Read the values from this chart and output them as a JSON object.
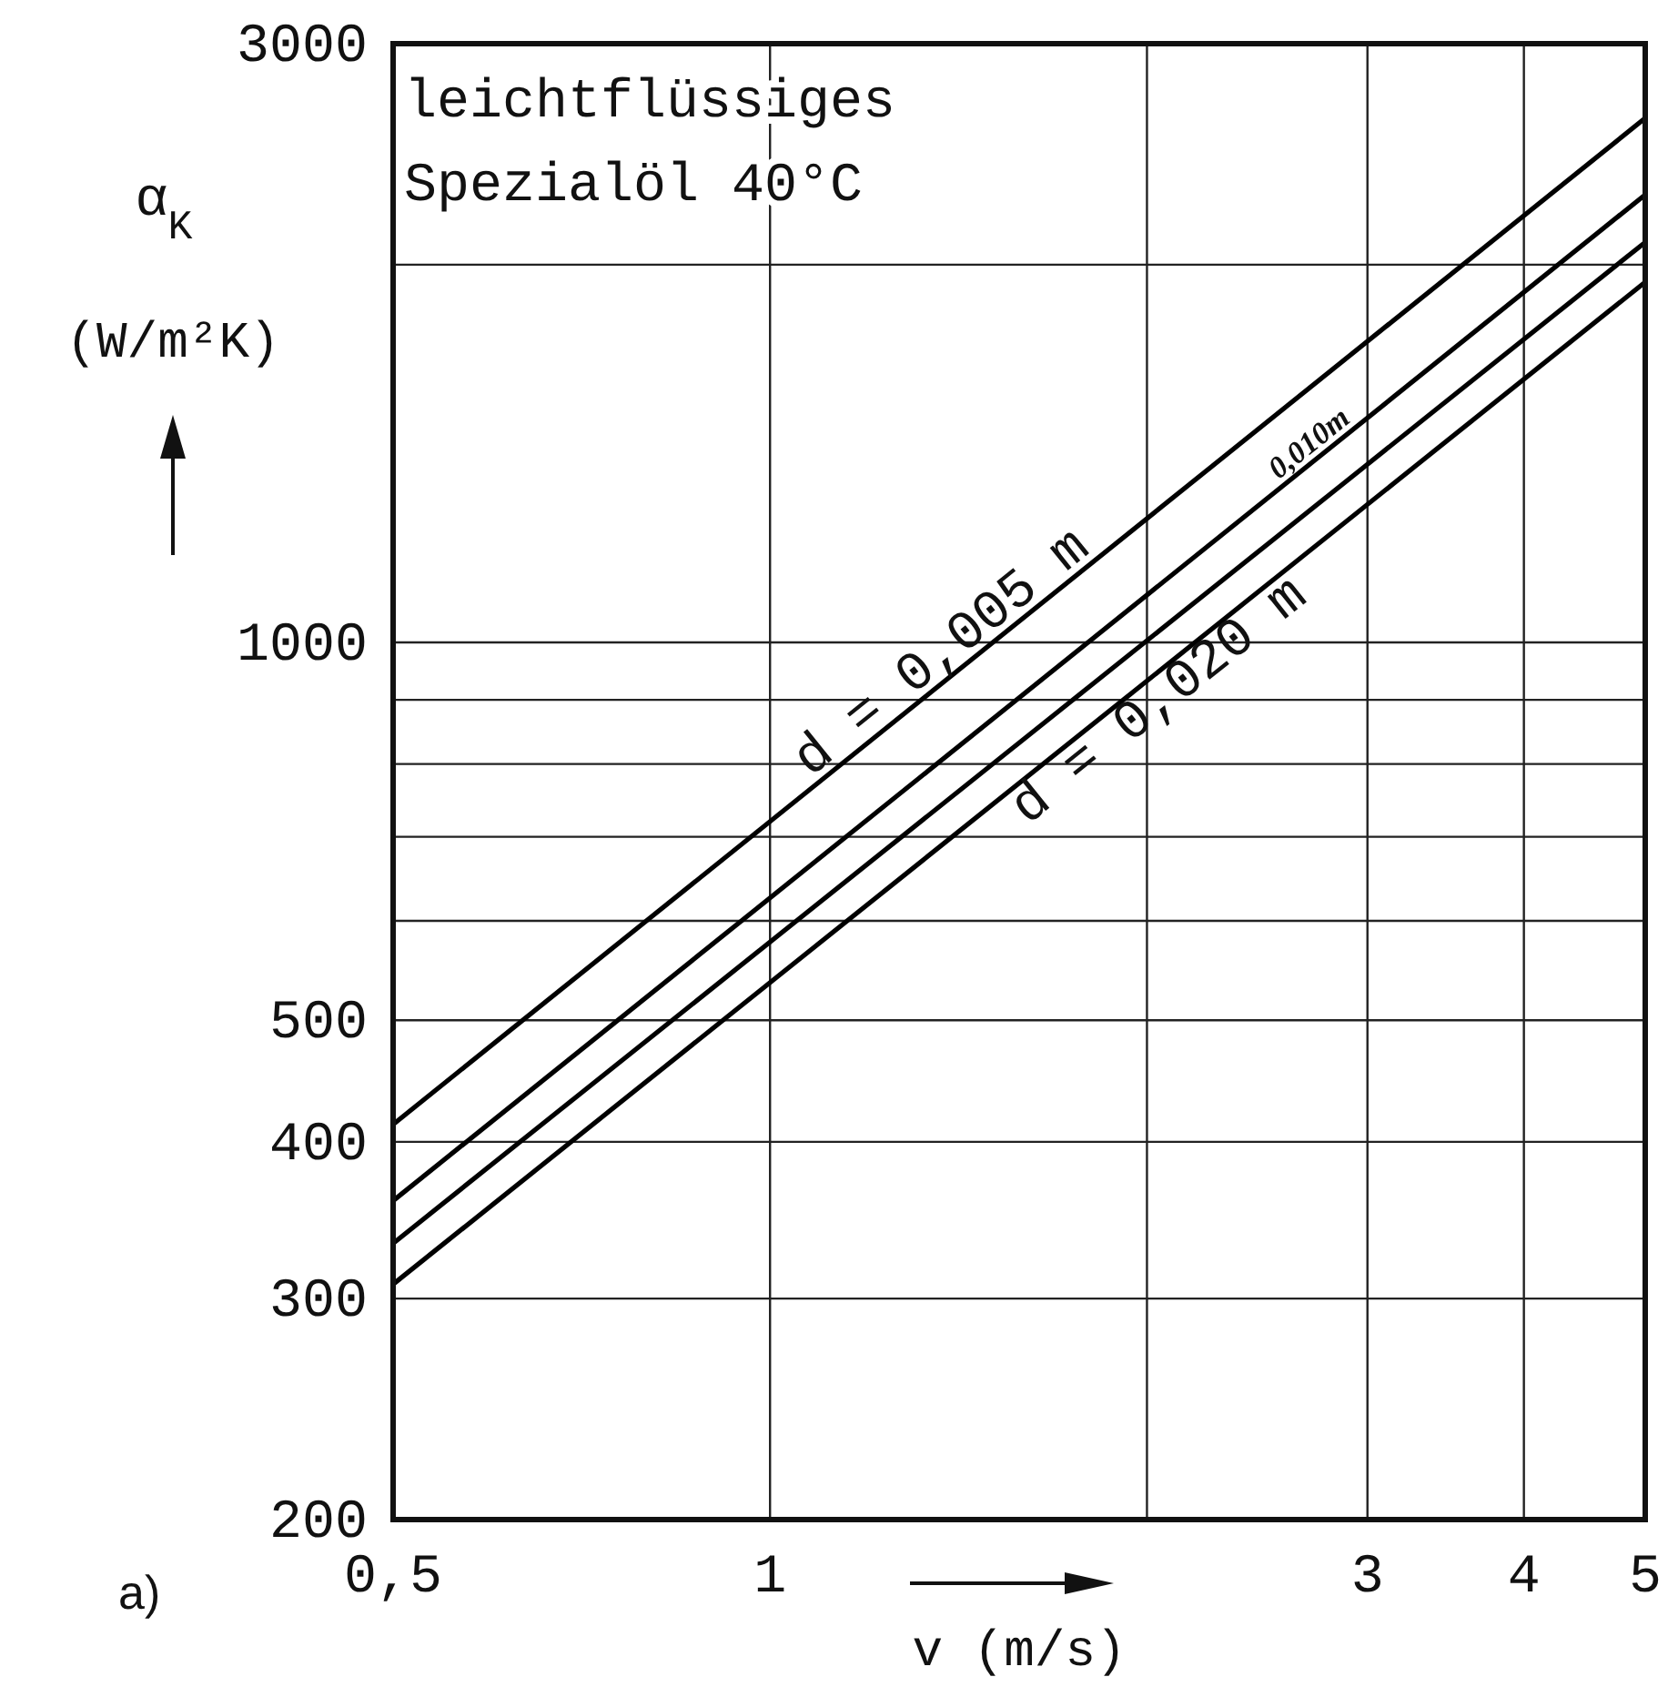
{
  "chart_data": {
    "type": "line",
    "title": "leichtflüssiges Spezialöl 40°C",
    "xlabel": "v (m/s)",
    "ylabel": "α$_{K}$ (W/m²K)",
    "log": "xy",
    "grid": true,
    "marker": "none",
    "line_style": "solid",
    "xlim": [
      0.5,
      5
    ],
    "xticks": [
      {
        "value": 0.5,
        "label": "0,5"
      },
      1,
      {
        "value": 2,
        "label": null
      },
      3,
      4,
      5
    ],
    "ylim": [
      200,
      3000
    ],
    "yticks": [
      200,
      300,
      400,
      500,
      {
        "value": 600,
        "label": null
      },
      {
        "value": 700,
        "label": null
      },
      {
        "value": 800,
        "label": null
      },
      {
        "value": 900,
        "label": null
      },
      1000,
      {
        "value": 2000,
        "label": null
      },
      3000
    ],
    "annotations": [
      "a)"
    ],
    "x": [
      0.5,
      5
    ],
    "series": [
      {
        "name": "d = 0,005 m",
        "color": "#000000",
        "values": [
          413,
          2617
        ]
      },
      {
        "name": "0,010m",
        "color": "#000000",
        "values": [
          359,
          2274
        ]
      },
      {
        "color": "#000000",
        "values": [
          332,
          2084
        ]
      },
      {
        "name": "d = 0,020 m",
        "color": "#000000",
        "values": [
          308,
          1937
        ]
      }
    ]
  }
}
